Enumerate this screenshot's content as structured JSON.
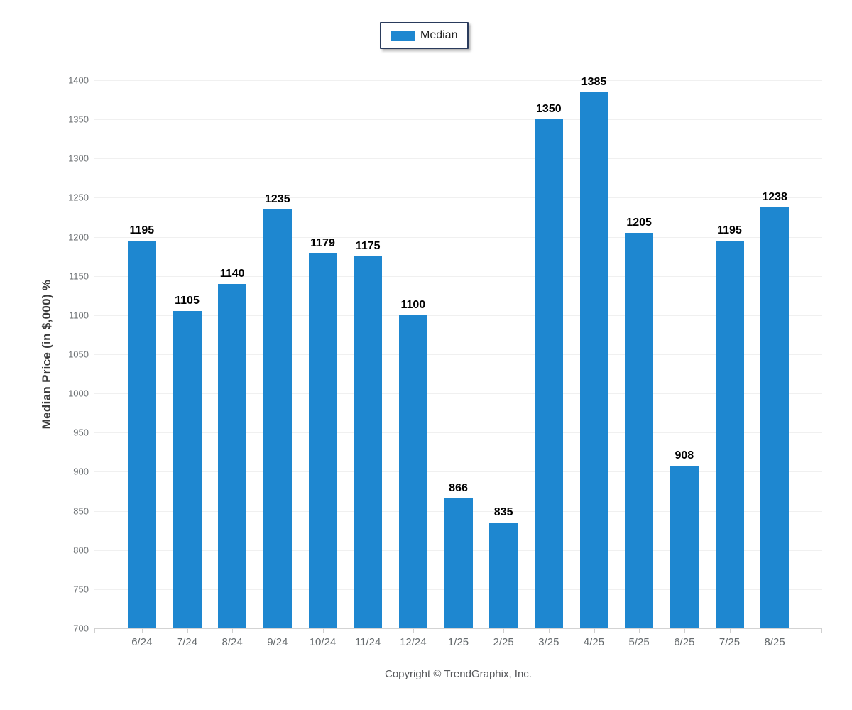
{
  "legend": {
    "position": "top-center",
    "items": [
      {
        "label": "Median",
        "color": "#1e87d0"
      }
    ]
  },
  "footer": {
    "text": "Copyright © TrendGraphix, Inc."
  },
  "chart_data": {
    "type": "bar",
    "title": "",
    "categories": [
      "6/24",
      "7/24",
      "8/24",
      "9/24",
      "10/24",
      "11/24",
      "12/24",
      "1/25",
      "2/25",
      "3/25",
      "4/25",
      "5/25",
      "6/25",
      "7/25",
      "8/25"
    ],
    "series": [
      {
        "name": "Median",
        "color": "#1e87d0",
        "values": [
          1195,
          1105,
          1140,
          1235,
          1179,
          1175,
          1100,
          866,
          835,
          1350,
          1385,
          1205,
          908,
          1195,
          1238
        ]
      }
    ],
    "xlabel": "",
    "ylabel": "Median Price (in $,000) %",
    "ylim": [
      700,
      1400
    ],
    "ytick_step": 50,
    "grid": "horizontal",
    "legend_position": "top-center",
    "value_labels": true
  },
  "colors": {
    "bar": "#1e87d0",
    "gridline": "#f0f0f0",
    "axis_line": "#d3d3d3",
    "tick": "#cfcfcf",
    "y_tick_label": "#6b6f72",
    "x_tick_label": "#666b6e",
    "value_label": "#000000",
    "y_axis_title": "#3c3c3c",
    "legend_border": "#2a3b5c",
    "footer_text": "#58595c"
  }
}
